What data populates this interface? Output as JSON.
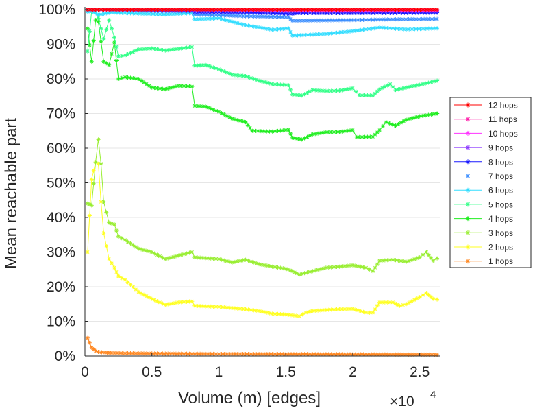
{
  "chart_data": {
    "type": "line",
    "title": "",
    "xlabel": "Volume (m) [edges]",
    "ylabel": "Mean reachable part",
    "x_multiplier_label": "×10",
    "x_multiplier_exponent": "4",
    "xlim": [
      0,
      2.65
    ],
    "ylim": [
      0,
      100
    ],
    "x_ticks": [
      0,
      0.5,
      1,
      1.5,
      2,
      2.5
    ],
    "x_tick_labels": [
      "0",
      "0.5",
      "1",
      "1.5",
      "2",
      "2.5"
    ],
    "y_ticks": [
      0,
      10,
      20,
      30,
      40,
      50,
      60,
      70,
      80,
      90,
      100
    ],
    "y_tick_labels": [
      "0%",
      "10%",
      "20%",
      "30%",
      "40%",
      "50%",
      "60%",
      "70%",
      "80%",
      "90%",
      "100%"
    ],
    "grid": "horizontal",
    "legend_position": "right",
    "series": [
      {
        "name": "12 hops",
        "color": "#ff0000",
        "points": [
          [
            0.02,
            100
          ],
          [
            0.6,
            100
          ],
          [
            1.2,
            100
          ],
          [
            1.8,
            100
          ],
          [
            2.4,
            100
          ],
          [
            2.63,
            100
          ]
        ]
      },
      {
        "name": "11 hops",
        "color": "#ff1aa8",
        "points": [
          [
            0.02,
            100
          ],
          [
            0.6,
            100
          ],
          [
            1.2,
            100
          ],
          [
            1.8,
            100
          ],
          [
            2.4,
            100
          ],
          [
            2.63,
            100
          ]
        ]
      },
      {
        "name": "10 hops",
        "color": "#ff33ff",
        "points": [
          [
            0.02,
            100
          ],
          [
            0.6,
            100
          ],
          [
            1.2,
            99.9
          ],
          [
            1.8,
            99.8
          ],
          [
            2.4,
            99.8
          ],
          [
            2.63,
            99.8
          ]
        ]
      },
      {
        "name": "9 hops",
        "color": "#8833ff",
        "points": [
          [
            0.02,
            100
          ],
          [
            0.6,
            99.9
          ],
          [
            1.2,
            99.8
          ],
          [
            1.55,
            99.6
          ],
          [
            2.0,
            99.6
          ],
          [
            2.63,
            99.6
          ]
        ]
      },
      {
        "name": "8 hops",
        "color": "#1a1aff",
        "points": [
          [
            0.02,
            100
          ],
          [
            0.3,
            100
          ],
          [
            0.6,
            99.8
          ],
          [
            0.8,
            99.7
          ],
          [
            0.82,
            99.3
          ],
          [
            1.2,
            99.2
          ],
          [
            1.55,
            98.8
          ],
          [
            1.6,
            99.0
          ],
          [
            2.0,
            99.0
          ],
          [
            2.63,
            99.1
          ]
        ]
      },
      {
        "name": "7 hops",
        "color": "#3d8fff",
        "points": [
          [
            0.02,
            100
          ],
          [
            0.3,
            99.8
          ],
          [
            0.6,
            99.5
          ],
          [
            0.8,
            99.5
          ],
          [
            0.82,
            98.6
          ],
          [
            1.2,
            98.1
          ],
          [
            1.52,
            97.8
          ],
          [
            1.55,
            96.8
          ],
          [
            2.0,
            97.0
          ],
          [
            2.3,
            97.2
          ],
          [
            2.63,
            97.3
          ]
        ]
      },
      {
        "name": "6 hops",
        "color": "#33ddff",
        "points": [
          [
            0.02,
            99.4
          ],
          [
            0.05,
            99.6
          ],
          [
            0.1,
            98.5
          ],
          [
            0.2,
            99.2
          ],
          [
            0.3,
            99.0
          ],
          [
            0.6,
            98.6
          ],
          [
            0.8,
            99.0
          ],
          [
            0.82,
            97.2
          ],
          [
            1.0,
            97.5
          ],
          [
            1.2,
            95.5
          ],
          [
            1.4,
            94.2
          ],
          [
            1.52,
            94.6
          ],
          [
            1.55,
            92.5
          ],
          [
            1.8,
            93.0
          ],
          [
            2.0,
            93.8
          ],
          [
            2.2,
            94.8
          ],
          [
            2.4,
            94.3
          ],
          [
            2.63,
            94.6
          ]
        ]
      },
      {
        "name": "5 hops",
        "color": "#33ff88",
        "points": [
          [
            0.02,
            88
          ],
          [
            0.05,
            99.5
          ],
          [
            0.08,
            99.8
          ],
          [
            0.1,
            97.5
          ],
          [
            0.14,
            91.5
          ],
          [
            0.18,
            97
          ],
          [
            0.22,
            92
          ],
          [
            0.25,
            86.5
          ],
          [
            0.3,
            86.8
          ],
          [
            0.4,
            88.5
          ],
          [
            0.5,
            88.8
          ],
          [
            0.6,
            88.2
          ],
          [
            0.7,
            88.7
          ],
          [
            0.8,
            89.2
          ],
          [
            0.82,
            83.8
          ],
          [
            0.9,
            84
          ],
          [
            1.0,
            82.8
          ],
          [
            1.1,
            81.2
          ],
          [
            1.2,
            80.8
          ],
          [
            1.3,
            79.5
          ],
          [
            1.4,
            78.5
          ],
          [
            1.52,
            78.2
          ],
          [
            1.55,
            75.5
          ],
          [
            1.62,
            75.2
          ],
          [
            1.7,
            76.8
          ],
          [
            1.8,
            76.5
          ],
          [
            1.9,
            76.6
          ],
          [
            2.0,
            77.3
          ],
          [
            2.05,
            75.3
          ],
          [
            2.15,
            75.2
          ],
          [
            2.2,
            77.0
          ],
          [
            2.28,
            78.5
          ],
          [
            2.32,
            76.8
          ],
          [
            2.4,
            77.5
          ],
          [
            2.5,
            78.3
          ],
          [
            2.63,
            79.5
          ]
        ]
      },
      {
        "name": "4 hops",
        "color": "#22ee22",
        "points": [
          [
            0.02,
            94.5
          ],
          [
            0.05,
            85
          ],
          [
            0.08,
            97
          ],
          [
            0.1,
            96.5
          ],
          [
            0.14,
            85
          ],
          [
            0.18,
            84
          ],
          [
            0.22,
            90.5
          ],
          [
            0.25,
            80
          ],
          [
            0.3,
            80.5
          ],
          [
            0.4,
            80
          ],
          [
            0.5,
            77.5
          ],
          [
            0.6,
            77
          ],
          [
            0.7,
            78
          ],
          [
            0.8,
            77.8
          ],
          [
            0.82,
            72.2
          ],
          [
            0.9,
            72
          ],
          [
            1.0,
            70.5
          ],
          [
            1.1,
            68.5
          ],
          [
            1.2,
            67.5
          ],
          [
            1.25,
            65
          ],
          [
            1.4,
            64.8
          ],
          [
            1.52,
            65.3
          ],
          [
            1.55,
            63
          ],
          [
            1.62,
            62.5
          ],
          [
            1.7,
            64
          ],
          [
            1.8,
            64.6
          ],
          [
            1.9,
            64.7
          ],
          [
            2.0,
            65.2
          ],
          [
            2.03,
            63.2
          ],
          [
            2.15,
            63.3
          ],
          [
            2.2,
            65.2
          ],
          [
            2.25,
            67.5
          ],
          [
            2.32,
            66.5
          ],
          [
            2.4,
            68.2
          ],
          [
            2.5,
            69.2
          ],
          [
            2.63,
            70
          ]
        ]
      },
      {
        "name": "3 hops",
        "color": "#99ee33",
        "points": [
          [
            0.02,
            44
          ],
          [
            0.05,
            43.5
          ],
          [
            0.08,
            56
          ],
          [
            0.1,
            62.5
          ],
          [
            0.12,
            55.5
          ],
          [
            0.14,
            44.5
          ],
          [
            0.18,
            38.5
          ],
          [
            0.22,
            38
          ],
          [
            0.25,
            34.5
          ],
          [
            0.3,
            33.5
          ],
          [
            0.4,
            31
          ],
          [
            0.5,
            30
          ],
          [
            0.6,
            28
          ],
          [
            0.7,
            29
          ],
          [
            0.8,
            30
          ],
          [
            0.82,
            28.5
          ],
          [
            1.0,
            28
          ],
          [
            1.1,
            27
          ],
          [
            1.2,
            27.8
          ],
          [
            1.3,
            26.5
          ],
          [
            1.4,
            25.8
          ],
          [
            1.5,
            25.2
          ],
          [
            1.55,
            24.5
          ],
          [
            1.6,
            23.5
          ],
          [
            1.7,
            24.5
          ],
          [
            1.8,
            25.5
          ],
          [
            1.9,
            25.8
          ],
          [
            2.0,
            26.2
          ],
          [
            2.1,
            25.5
          ],
          [
            2.15,
            24.5
          ],
          [
            2.2,
            27.5
          ],
          [
            2.3,
            27.8
          ],
          [
            2.4,
            27.2
          ],
          [
            2.5,
            28.5
          ],
          [
            2.55,
            30
          ],
          [
            2.6,
            27.5
          ],
          [
            2.63,
            28.2
          ]
        ]
      },
      {
        "name": "2 hops",
        "color": "#ffff22",
        "points": [
          [
            0.02,
            30
          ],
          [
            0.05,
            51
          ],
          [
            0.08,
            56
          ],
          [
            0.1,
            55.5
          ],
          [
            0.12,
            44.5
          ],
          [
            0.14,
            35.5
          ],
          [
            0.18,
            28
          ],
          [
            0.22,
            25.5
          ],
          [
            0.25,
            23
          ],
          [
            0.3,
            22
          ],
          [
            0.4,
            18.5
          ],
          [
            0.5,
            16.5
          ],
          [
            0.6,
            14.8
          ],
          [
            0.7,
            15.5
          ],
          [
            0.8,
            15.8
          ],
          [
            0.82,
            14.5
          ],
          [
            1.0,
            14.2
          ],
          [
            1.2,
            13.5
          ],
          [
            1.3,
            13
          ],
          [
            1.4,
            12.2
          ],
          [
            1.5,
            12.0
          ],
          [
            1.6,
            11.5
          ],
          [
            1.65,
            12.5
          ],
          [
            1.7,
            13
          ],
          [
            1.8,
            13.3
          ],
          [
            1.9,
            13.5
          ],
          [
            2.0,
            13.6
          ],
          [
            2.1,
            12.5
          ],
          [
            2.15,
            12.5
          ],
          [
            2.2,
            15.5
          ],
          [
            2.3,
            15.5
          ],
          [
            2.35,
            14.5
          ],
          [
            2.4,
            15
          ],
          [
            2.5,
            17
          ],
          [
            2.55,
            18.2
          ],
          [
            2.6,
            16.5
          ],
          [
            2.63,
            16.3
          ]
        ]
      },
      {
        "name": "1 hops",
        "color": "#ff8822",
        "points": [
          [
            0.02,
            5.2
          ],
          [
            0.05,
            2.4
          ],
          [
            0.08,
            1.5
          ],
          [
            0.1,
            1.2
          ],
          [
            0.15,
            1.0
          ],
          [
            0.2,
            0.9
          ],
          [
            0.3,
            0.8
          ],
          [
            0.6,
            0.7
          ],
          [
            1.0,
            0.6
          ],
          [
            1.5,
            0.55
          ],
          [
            2.0,
            0.5
          ],
          [
            2.3,
            0.45
          ],
          [
            2.63,
            0.4
          ]
        ]
      }
    ]
  }
}
